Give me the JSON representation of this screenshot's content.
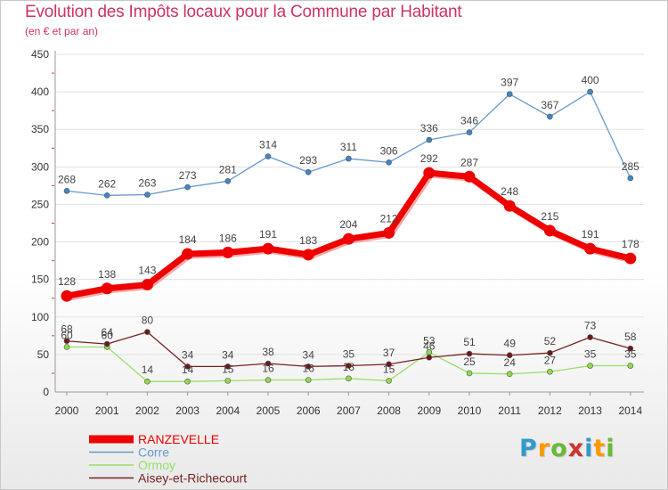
{
  "chart_data": {
    "type": "line",
    "title": "Evolution des Impôts locaux pour la Commune par Habitant",
    "subtitle": "(en € et par an)",
    "xlabel": "",
    "ylabel": "",
    "ylim": [
      0,
      450
    ],
    "yticks": [
      "0",
      "50",
      "100",
      "150",
      "200",
      "250",
      "300",
      "350",
      "400",
      "450"
    ],
    "categories": [
      "2000",
      "2001",
      "2002",
      "2003",
      "2004",
      "2005",
      "2006",
      "2007",
      "2008",
      "2009",
      "2010",
      "2011",
      "2012",
      "2013",
      "2014"
    ],
    "grid": true,
    "legend_position": "bottom-left",
    "series": [
      {
        "name": "RANZEVELLE",
        "color": "#ee0000",
        "values": [
          128,
          138,
          143,
          184,
          186,
          191,
          183,
          204,
          212,
          292,
          287,
          248,
          215,
          191,
          178
        ]
      },
      {
        "name": "Corre",
        "color": "#6699cc",
        "values": [
          268,
          262,
          263,
          273,
          281,
          314,
          293,
          311,
          306,
          336,
          346,
          397,
          367,
          400,
          285
        ]
      },
      {
        "name": "Ormoy",
        "color": "#99dd66",
        "values": [
          60,
          60,
          14,
          14,
          15,
          16,
          16,
          18,
          15,
          53,
          25,
          24,
          27,
          35,
          35
        ]
      },
      {
        "name": "Aisey-et-Richecourt",
        "color": "#772222",
        "values": [
          68,
          64,
          80,
          34,
          34,
          38,
          34,
          35,
          37,
          46,
          51,
          49,
          52,
          73,
          58
        ]
      }
    ]
  },
  "brand": {
    "letters": [
      "P",
      "r",
      "o",
      "x",
      "i",
      "t",
      "i"
    ],
    "colors": [
      "#3399cc",
      "#ff9900",
      "#66bb33",
      "#cc3333",
      "#3399cc",
      "#ff9900",
      "#66bb33"
    ]
  }
}
